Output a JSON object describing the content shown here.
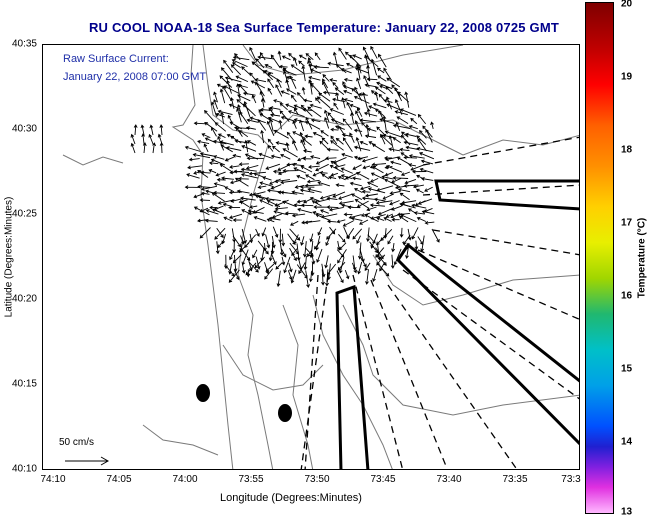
{
  "title": "RU COOL  NOAA-18  Sea Surface Temperature:  January 22, 2008 0725 GMT",
  "overlay": {
    "line1": "Raw Surface Current:",
    "line2": "January 22, 2008 07:00 GMT",
    "scale_label": "50 cm/s"
  },
  "axes": {
    "xlabel": "Longitude (Degrees:Minutes)",
    "ylabel": "Latitude (Degrees:Minutes)",
    "x_ticks": [
      "74:10",
      "74:05",
      "74:00",
      "73:55",
      "73:50",
      "73:45",
      "73:40",
      "73:35",
      "73:3"
    ],
    "y_ticks": [
      "40:35",
      "40:30",
      "40:25",
      "40:20",
      "40:15",
      "40:10"
    ]
  },
  "colorbar": {
    "label": "Temperature (°C)",
    "ticks": [
      "20",
      "19",
      "18",
      "17",
      "16",
      "15",
      "14",
      "13"
    ]
  },
  "colors": {
    "title": "#00008b",
    "overlay_text": "#1f2fa8"
  },
  "features": {
    "solid_boxes": 3,
    "dashed_transects": 10,
    "black_dots": 2
  }
}
